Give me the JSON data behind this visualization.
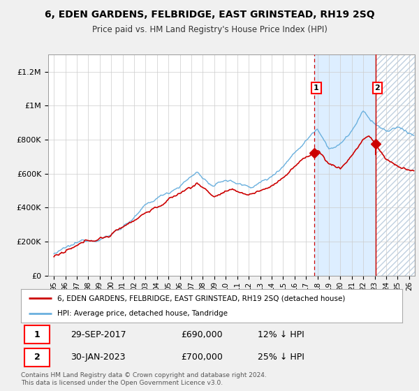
{
  "title": "6, EDEN GARDENS, FELBRIDGE, EAST GRINSTEAD, RH19 2SQ",
  "subtitle": "Price paid vs. HM Land Registry's House Price Index (HPI)",
  "legend_line1": "6, EDEN GARDENS, FELBRIDGE, EAST GRINSTEAD, RH19 2SQ (detached house)",
  "legend_line2": "HPI: Average price, detached house, Tandridge",
  "sale1_label": "1",
  "sale1_date": "29-SEP-2017",
  "sale1_price": "£690,000",
  "sale1_hpi": "12% ↓ HPI",
  "sale2_label": "2",
  "sale2_date": "30-JAN-2023",
  "sale2_price": "£700,000",
  "sale2_hpi": "25% ↓ HPI",
  "footer": "Contains HM Land Registry data © Crown copyright and database right 2024.\nThis data is licensed under the Open Government Licence v3.0.",
  "sale1_x": 2017.75,
  "sale2_x": 2023.08,
  "sale1_y": 690000,
  "sale2_y": 700000,
  "hpi_color": "#6ab0de",
  "price_color": "#cc0000",
  "vline_color": "#cc0000",
  "shade_color": "#ddeeff",
  "hatch_color": "#c8d8e8",
  "background_color": "#f0f0f0",
  "plot_bg_color": "#ffffff",
  "ylim": [
    0,
    1300000
  ],
  "xlim": [
    1994.5,
    2026.5
  ]
}
